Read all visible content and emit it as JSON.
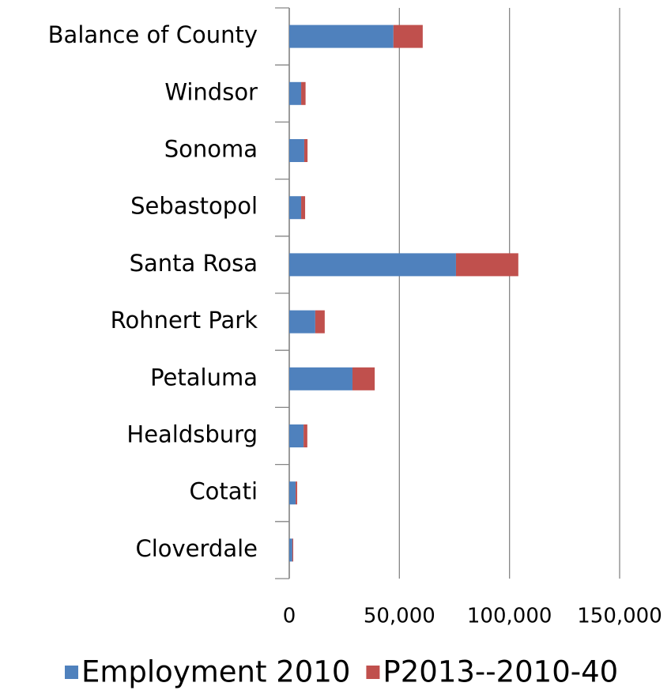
{
  "chart_data": {
    "type": "stacked-barh",
    "categories": [
      "Cloverdale",
      "Cotati",
      "Healdsburg",
      "Petaluma",
      "Rohnert Park",
      "Santa Rosa",
      "Sebastopol",
      "Sonoma",
      "Windsor",
      "Balance of County"
    ],
    "series": [
      {
        "name": "Employment 2010",
        "color": "#4f81bd",
        "values": [
          1400,
          2900,
          6500,
          28700,
          11800,
          75700,
          5400,
          6800,
          5400,
          47300
        ]
      },
      {
        "name": "P2013--2010-40",
        "color": "#c0504d",
        "values": [
          400,
          700,
          1700,
          10100,
          4300,
          28300,
          1800,
          1500,
          2000,
          13300
        ]
      }
    ],
    "xlim": [
      0,
      150000
    ],
    "xticks": [
      0,
      {
        "value": 50000,
        "label": "50,000"
      },
      {
        "value": 100000,
        "label": "100,000"
      },
      {
        "value": 150000,
        "label": "150,000"
      }
    ],
    "grid": true,
    "legend": "bottom"
  }
}
